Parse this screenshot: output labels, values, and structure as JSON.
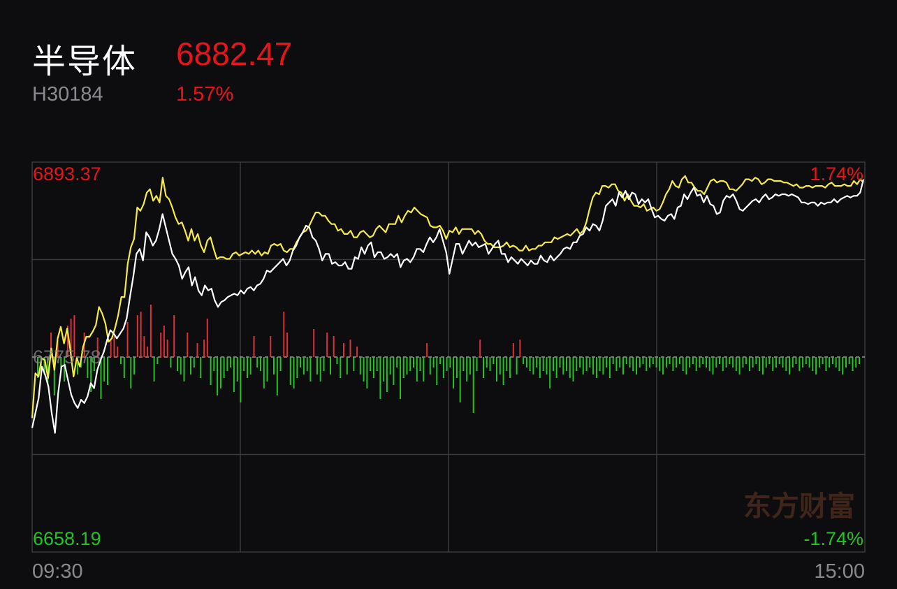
{
  "header": {
    "name": "半导体",
    "price": "6882.47",
    "code": "H30184",
    "change_pct": "1.57%"
  },
  "watermark": "东方财富",
  "colors": {
    "up": "#e8141c",
    "down": "#22c322",
    "index_line": "#ffffff",
    "avg_line": "#f5ea46",
    "grid": "#3a3a3c",
    "muted": "#8a8a8e"
  },
  "chart_data": {
    "type": "line",
    "ylim": [
      6658.19,
      6893.37
    ],
    "y_labels": {
      "max": "6893.37",
      "mid": "6775.78",
      "min": "6658.19",
      "max_pct": "1.74%",
      "min_pct": "-1.74%"
    },
    "x_labels": {
      "start": "09:30",
      "end": "15:00"
    },
    "grid": true,
    "series": [
      {
        "key": "index",
        "values": [
          6733,
          6742,
          6751,
          6770,
          6765,
          6758,
          6742,
          6730,
          6754,
          6770,
          6771,
          6762,
          6753,
          6748,
          6745,
          6750,
          6748,
          6752,
          6760,
          6757,
          6768,
          6774,
          6779,
          6786,
          6792,
          6790,
          6787,
          6790,
          6793,
          6799,
          6812,
          6824,
          6838,
          6841,
          6834,
          6851,
          6848,
          6843,
          6846,
          6853,
          6862,
          6854,
          6846,
          6838,
          6835,
          6831,
          6823,
          6827,
          6830,
          6819,
          6824,
          6816,
          6813,
          6819,
          6816,
          6817,
          6810,
          6806,
          6809,
          6810,
          6812,
          6813,
          6814,
          6813,
          6816,
          6814,
          6817,
          6818,
          6816,
          6819,
          6820,
          6823,
          6828,
          6827,
          6829,
          6831,
          6833,
          6835,
          6831,
          6834,
          6840,
          6843,
          6848,
          6851,
          6855,
          6854,
          6848,
          6846,
          6841,
          6834,
          6838,
          6838,
          6832,
          6833,
          6831,
          6831,
          6833,
          6829,
          6829,
          6836,
          6835,
          6842,
          6838,
          6843,
          6845,
          6836,
          6839,
          6839,
          6835,
          6836,
          6838,
          6836,
          6838,
          6830,
          6834,
          6835,
          6833,
          6836,
          6841,
          6841,
          6839,
          6844,
          6848,
          6845,
          6848,
          6853,
          6846,
          6839,
          6826,
          6835,
          6844,
          6844,
          6838,
          6842,
          6846,
          6843,
          6845,
          6842,
          6843,
          6844,
          6838,
          6841,
          6844,
          6846,
          6838,
          6838,
          6833,
          6836,
          6834,
          6832,
          6835,
          6833,
          6831,
          6834,
          6832,
          6832,
          6837,
          6834,
          6833,
          6837,
          6834,
          6836,
          6838,
          6841,
          6842,
          6841,
          6845,
          6845,
          6849,
          6850,
          6854,
          6852,
          6856,
          6855,
          6852,
          6858,
          6867,
          6869,
          6871,
          6867,
          6875,
          6872,
          6876,
          6871,
          6875,
          6874,
          6868,
          6871,
          6869,
          6871,
          6865,
          6860,
          6861,
          6859,
          6858,
          6861,
          6862,
          6859,
          6866,
          6867,
          6874,
          6871,
          6875,
          6878,
          6873,
          6874,
          6869,
          6873,
          6868,
          6867,
          6862,
          6863,
          6870,
          6873,
          6872,
          6874,
          6870,
          6865,
          6864,
          6866,
          6868,
          6870,
          6871,
          6869,
          6872,
          6874,
          6871,
          6872,
          6874,
          6873,
          6874,
          6874,
          6873,
          6874,
          6873,
          6872,
          6869,
          6869,
          6868,
          6869,
          6869,
          6867,
          6869,
          6868,
          6869,
          6869,
          6871,
          6869,
          6871,
          6872,
          6873,
          6872,
          6873,
          6873,
          6875,
          6883
        ]
      },
      {
        "key": "average",
        "values": [
          6739,
          6766,
          6764,
          6775,
          6774,
          6763,
          6781,
          6768,
          6787,
          6794,
          6784,
          6793,
          6780,
          6764,
          6775,
          6770,
          6782,
          6788,
          6788,
          6791,
          6795,
          6806,
          6802,
          6796,
          6785,
          6787,
          6793,
          6801,
          6812,
          6812,
          6832,
          6842,
          6847,
          6866,
          6864,
          6868,
          6875,
          6877,
          6870,
          6873,
          6869,
          6884,
          6873,
          6871,
          6866,
          6860,
          6856,
          6857,
          6852,
          6846,
          6853,
          6846,
          6850,
          6843,
          6839,
          6846,
          6848,
          6841,
          6835,
          6836,
          6836,
          6835,
          6835,
          6838,
          6839,
          6837,
          6838,
          6839,
          6838,
          6840,
          6838,
          6840,
          6837,
          6839,
          6838,
          6843,
          6844,
          6843,
          6844,
          6840,
          6839,
          6841,
          6841,
          6845,
          6848,
          6851,
          6852,
          6855,
          6859,
          6863,
          6863,
          6861,
          6861,
          6858,
          6856,
          6856,
          6852,
          6853,
          6850,
          6850,
          6852,
          6848,
          6848,
          6851,
          6852,
          6850,
          6848,
          6849,
          6853,
          6855,
          6853,
          6851,
          6856,
          6856,
          6856,
          6861,
          6857,
          6861,
          6864,
          6863,
          6866,
          6864,
          6862,
          6861,
          6860,
          6855,
          6854,
          6854,
          6855,
          6852,
          6847,
          6852,
          6851,
          6854,
          6850,
          6853,
          6853,
          6853,
          6853,
          6850,
          6852,
          6850,
          6846,
          6844,
          6844,
          6842,
          6842,
          6842,
          6843,
          6845,
          6842,
          6843,
          6842,
          6840,
          6840,
          6843,
          6840,
          6841,
          6841,
          6843,
          6843,
          6845,
          6845,
          6845,
          6848,
          6847,
          6848,
          6849,
          6850,
          6849,
          6851,
          6853,
          6850,
          6852,
          6857,
          6865,
          6872,
          6875,
          6874,
          6879,
          6879,
          6878,
          6880,
          6880,
          6876,
          6875,
          6870,
          6874,
          6870,
          6867,
          6867,
          6866,
          6868,
          6864,
          6865,
          6866,
          6864,
          6865,
          6869,
          6874,
          6877,
          6882,
          6879,
          6878,
          6883,
          6885,
          6881,
          6881,
          6878,
          6876,
          6876,
          6874,
          6878,
          6882,
          6883,
          6881,
          6882,
          6882,
          6881,
          6877,
          6877,
          6876,
          6878,
          6880,
          6883,
          6883,
          6882,
          6884,
          6883,
          6880,
          6881,
          6883,
          6883,
          6882,
          6882,
          6882,
          6881,
          6881,
          6880,
          6879,
          6880,
          6878,
          6878,
          6879,
          6879,
          6878,
          6879,
          6879,
          6879,
          6878,
          6880,
          6881,
          6879,
          6879,
          6879,
          6880,
          6879,
          6879,
          6882,
          6880,
          6883,
          6881
        ]
      }
    ],
    "volume_delta": [
      -30,
      -15,
      -25,
      -40,
      35,
      -55,
      25,
      -20,
      -35,
      45,
      55,
      60,
      -25,
      -15,
      35,
      -30,
      -50,
      -20,
      28,
      -60,
      -35,
      -40,
      25,
      30,
      15,
      -10,
      -30,
      50,
      -45,
      -25,
      60,
      65,
      30,
      15,
      75,
      -35,
      -10,
      35,
      45,
      25,
      -15,
      60,
      -20,
      -25,
      -35,
      35,
      -25,
      -15,
      20,
      -30,
      25,
      55,
      -40,
      -20,
      -55,
      -45,
      -30,
      -20,
      -15,
      -50,
      -35,
      -65,
      -20,
      -30,
      -25,
      30,
      -15,
      -20,
      -45,
      -35,
      30,
      -25,
      -55,
      -20,
      65,
      35,
      -40,
      -45,
      -30,
      -15,
      -25,
      -20,
      -35,
      40,
      -25,
      -35,
      -20,
      35,
      -25,
      30,
      -10,
      -30,
      20,
      -25,
      25,
      -20,
      15,
      -25,
      -35,
      -45,
      -20,
      -30,
      -20,
      -60,
      -35,
      -50,
      -25,
      -40,
      -15,
      -60,
      -30,
      -25,
      -20,
      -15,
      -35,
      -20,
      -35,
      20,
      -25,
      -15,
      -40,
      -10,
      -30,
      -20,
      -15,
      -45,
      -30,
      -65,
      -20,
      -35,
      -25,
      -80,
      -20,
      25,
      -30,
      -15,
      -20,
      -10,
      -35,
      -25,
      -40,
      -20,
      -30,
      20,
      -25,
      25,
      -10,
      -15,
      -20,
      -25,
      -15,
      -30,
      -20,
      -25,
      -45,
      -20,
      -30,
      -15,
      -25,
      -20,
      -30,
      -35,
      -20,
      -15,
      -25,
      -20,
      -15,
      -25,
      -30,
      -20,
      -25,
      -15,
      -30,
      -10,
      -20,
      -15,
      -25,
      -10,
      -15,
      -20,
      -25,
      -15,
      -10,
      -20,
      -15,
      -10,
      -15,
      -20,
      -25,
      -15,
      -10,
      -20,
      -15,
      -10,
      -20,
      -25,
      -15,
      -10,
      -20,
      -15,
      -10,
      -15,
      -20,
      -25,
      -15,
      -10,
      -20,
      -15,
      -10,
      -15,
      -20,
      -25,
      -15,
      -10,
      -20,
      -15,
      -10,
      -20,
      -25,
      -15,
      -10,
      -20,
      -15,
      -10,
      -15,
      -20,
      -25,
      -15,
      -10,
      -20,
      -15,
      -10,
      -15,
      -20,
      -25,
      -15,
      -10,
      -20,
      -15,
      -10,
      -15,
      -20,
      -25,
      -15,
      -10,
      -20,
      -15,
      -10
    ]
  }
}
